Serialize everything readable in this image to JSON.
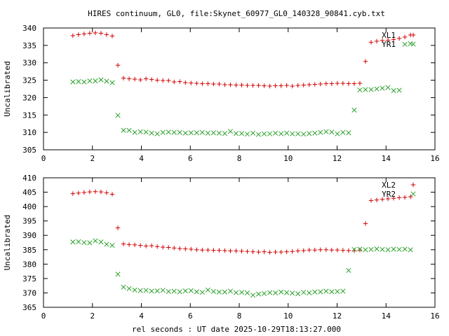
{
  "figure": {
    "title": "HIRES continuum, GL0, file:Skynet_60977_GL0_140328_90841.cyb.txt",
    "xlabel": "rel seconds : UT date 2025-10-29T18:13:27.000"
  },
  "colors": {
    "red": "#d40000",
    "green": "#2aa02a",
    "axis": "#000000"
  },
  "chart_data": [
    {
      "type": "scatter",
      "ylabel": "Uncalibrated",
      "xlim": [
        0,
        16
      ],
      "ylim": [
        305,
        340
      ],
      "xticks": [
        0,
        2,
        4,
        6,
        8,
        10,
        12,
        14,
        16
      ],
      "yticks": [
        305,
        310,
        315,
        320,
        325,
        330,
        335,
        340
      ],
      "series": [
        {
          "name": "XL1",
          "marker": "+",
          "color": "#d40000",
          "x": [
            1.2,
            1.43,
            1.66,
            1.89,
            2.12,
            2.35,
            2.58,
            2.81,
            3.04,
            3.27,
            3.5,
            3.73,
            3.96,
            4.19,
            4.42,
            4.65,
            4.88,
            5.11,
            5.34,
            5.57,
            5.8,
            6.03,
            6.26,
            6.49,
            6.72,
            6.95,
            7.18,
            7.41,
            7.64,
            7.87,
            8.1,
            8.33,
            8.56,
            8.79,
            9.02,
            9.25,
            9.48,
            9.71,
            9.94,
            10.17,
            10.4,
            10.63,
            10.86,
            11.09,
            11.32,
            11.55,
            11.78,
            12.01,
            12.24,
            12.47,
            12.7,
            12.93,
            13.16,
            13.39,
            13.62,
            13.85,
            14.08,
            14.31,
            14.54,
            14.77,
            15.0
          ],
          "y": [
            337.8,
            338.1,
            338.3,
            338.5,
            338.6,
            338.5,
            338.1,
            337.7,
            329.3,
            325.6,
            325.4,
            325.3,
            325.1,
            325.4,
            325.2,
            325.0,
            324.9,
            324.9,
            324.5,
            324.6,
            324.3,
            324.2,
            324.1,
            324.0,
            324.0,
            323.9,
            323.9,
            323.7,
            323.7,
            323.6,
            323.6,
            323.5,
            323.5,
            323.5,
            323.4,
            323.3,
            323.4,
            323.4,
            323.5,
            323.3,
            323.5,
            323.6,
            323.7,
            323.8,
            323.9,
            324.0,
            324.0,
            324.1,
            324.1,
            324.0,
            324.0,
            324.1,
            330.4,
            335.9,
            336.2,
            336.4,
            336.5,
            336.7,
            337.0,
            337.4,
            338.0
          ]
        },
        {
          "name": "YR1",
          "marker": "x",
          "color": "#2aa02a",
          "x": [
            1.2,
            1.43,
            1.66,
            1.89,
            2.12,
            2.35,
            2.58,
            2.81,
            3.04,
            3.27,
            3.5,
            3.73,
            3.96,
            4.19,
            4.42,
            4.65,
            4.88,
            5.11,
            5.34,
            5.57,
            5.8,
            6.03,
            6.26,
            6.49,
            6.72,
            6.95,
            7.18,
            7.41,
            7.64,
            7.87,
            8.1,
            8.33,
            8.56,
            8.79,
            9.02,
            9.25,
            9.48,
            9.71,
            9.94,
            10.17,
            10.4,
            10.63,
            10.86,
            11.09,
            11.32,
            11.55,
            11.78,
            12.01,
            12.24,
            12.47,
            12.7,
            12.93,
            13.16,
            13.39,
            13.62,
            13.85,
            14.08,
            14.31,
            14.54,
            14.77,
            15.0
          ],
          "y": [
            324.5,
            324.6,
            324.5,
            324.8,
            324.8,
            325.1,
            324.7,
            324.3,
            314.9,
            310.6,
            310.6,
            310.0,
            310.2,
            310.1,
            309.8,
            309.6,
            310.0,
            310.1,
            310.0,
            310.0,
            309.8,
            309.9,
            309.9,
            310.0,
            309.8,
            309.9,
            309.8,
            309.7,
            310.3,
            309.7,
            309.7,
            309.5,
            309.8,
            309.4,
            309.6,
            309.6,
            309.8,
            309.6,
            309.8,
            309.6,
            309.6,
            309.5,
            309.7,
            309.8,
            310.0,
            310.2,
            310.1,
            309.6,
            310.0,
            309.9,
            316.4,
            322.2,
            322.3,
            322.3,
            322.5,
            322.7,
            322.9,
            322.0,
            322.1,
            335.3,
            335.5
          ]
        }
      ],
      "legend": "top-right"
    },
    {
      "type": "scatter",
      "ylabel": "Uncalibrated",
      "xlim": [
        0,
        16
      ],
      "ylim": [
        365,
        410
      ],
      "xticks": [
        0,
        2,
        4,
        6,
        8,
        10,
        12,
        14,
        16
      ],
      "yticks": [
        365,
        370,
        375,
        380,
        385,
        390,
        395,
        400,
        405,
        410
      ],
      "series": [
        {
          "name": "XL2",
          "marker": "+",
          "color": "#d40000",
          "x": [
            1.2,
            1.43,
            1.66,
            1.89,
            2.12,
            2.35,
            2.58,
            2.81,
            3.04,
            3.27,
            3.5,
            3.73,
            3.96,
            4.19,
            4.42,
            4.65,
            4.88,
            5.11,
            5.34,
            5.57,
            5.8,
            6.03,
            6.26,
            6.49,
            6.72,
            6.95,
            7.18,
            7.41,
            7.64,
            7.87,
            8.1,
            8.33,
            8.56,
            8.79,
            9.02,
            9.25,
            9.48,
            9.71,
            9.94,
            10.17,
            10.4,
            10.63,
            10.86,
            11.09,
            11.32,
            11.55,
            11.78,
            12.01,
            12.24,
            12.47,
            12.7,
            12.93,
            13.16,
            13.39,
            13.62,
            13.85,
            14.08,
            14.31,
            14.54,
            14.77,
            15.0
          ],
          "y": [
            404.5,
            404.7,
            404.9,
            405.1,
            405.2,
            405.1,
            404.8,
            404.3,
            392.6,
            387.0,
            386.8,
            386.7,
            386.5,
            386.3,
            386.4,
            386.1,
            385.9,
            385.8,
            385.6,
            385.4,
            385.3,
            385.2,
            385.0,
            384.9,
            384.9,
            384.8,
            384.8,
            384.7,
            384.6,
            384.6,
            384.5,
            384.4,
            384.3,
            384.2,
            384.3,
            384.1,
            384.2,
            384.2,
            384.3,
            384.4,
            384.6,
            384.7,
            384.9,
            384.9,
            385.0,
            385.0,
            384.9,
            384.9,
            384.8,
            384.7,
            384.7,
            384.9,
            394.1,
            402.1,
            402.3,
            402.5,
            402.7,
            402.9,
            403.1,
            403.2,
            403.4
          ]
        },
        {
          "name": "YR2",
          "marker": "x",
          "color": "#2aa02a",
          "x": [
            1.2,
            1.43,
            1.66,
            1.89,
            2.12,
            2.35,
            2.58,
            2.81,
            3.04,
            3.27,
            3.5,
            3.73,
            3.96,
            4.19,
            4.42,
            4.65,
            4.88,
            5.11,
            5.34,
            5.57,
            5.8,
            6.03,
            6.26,
            6.49,
            6.72,
            6.95,
            7.18,
            7.41,
            7.64,
            7.87,
            8.1,
            8.33,
            8.56,
            8.79,
            9.02,
            9.25,
            9.48,
            9.71,
            9.94,
            10.17,
            10.4,
            10.63,
            10.86,
            11.09,
            11.32,
            11.55,
            11.78,
            12.01,
            12.24,
            12.47,
            12.7,
            12.93,
            13.16,
            13.39,
            13.62,
            13.85,
            14.08,
            14.31,
            14.54,
            14.77,
            15.0
          ],
          "y": [
            387.7,
            387.8,
            387.5,
            387.4,
            388.1,
            387.7,
            386.9,
            386.5,
            376.5,
            372.0,
            371.5,
            371.0,
            370.8,
            370.9,
            370.6,
            370.7,
            370.9,
            370.5,
            370.6,
            370.4,
            370.7,
            370.8,
            370.4,
            370.2,
            371.0,
            370.5,
            370.3,
            370.3,
            370.6,
            370.1,
            370.2,
            370.0,
            369.2,
            369.6,
            369.8,
            370.1,
            370.0,
            370.3,
            370.1,
            369.9,
            369.7,
            370.2,
            370.0,
            370.3,
            370.4,
            370.6,
            370.4,
            370.5,
            370.6,
            377.8,
            385.1,
            385.2,
            385.0,
            385.1,
            385.3,
            385.1,
            385.0,
            385.2,
            385.1,
            385.2,
            385.0
          ]
        }
      ],
      "legend": "top-right"
    }
  ]
}
